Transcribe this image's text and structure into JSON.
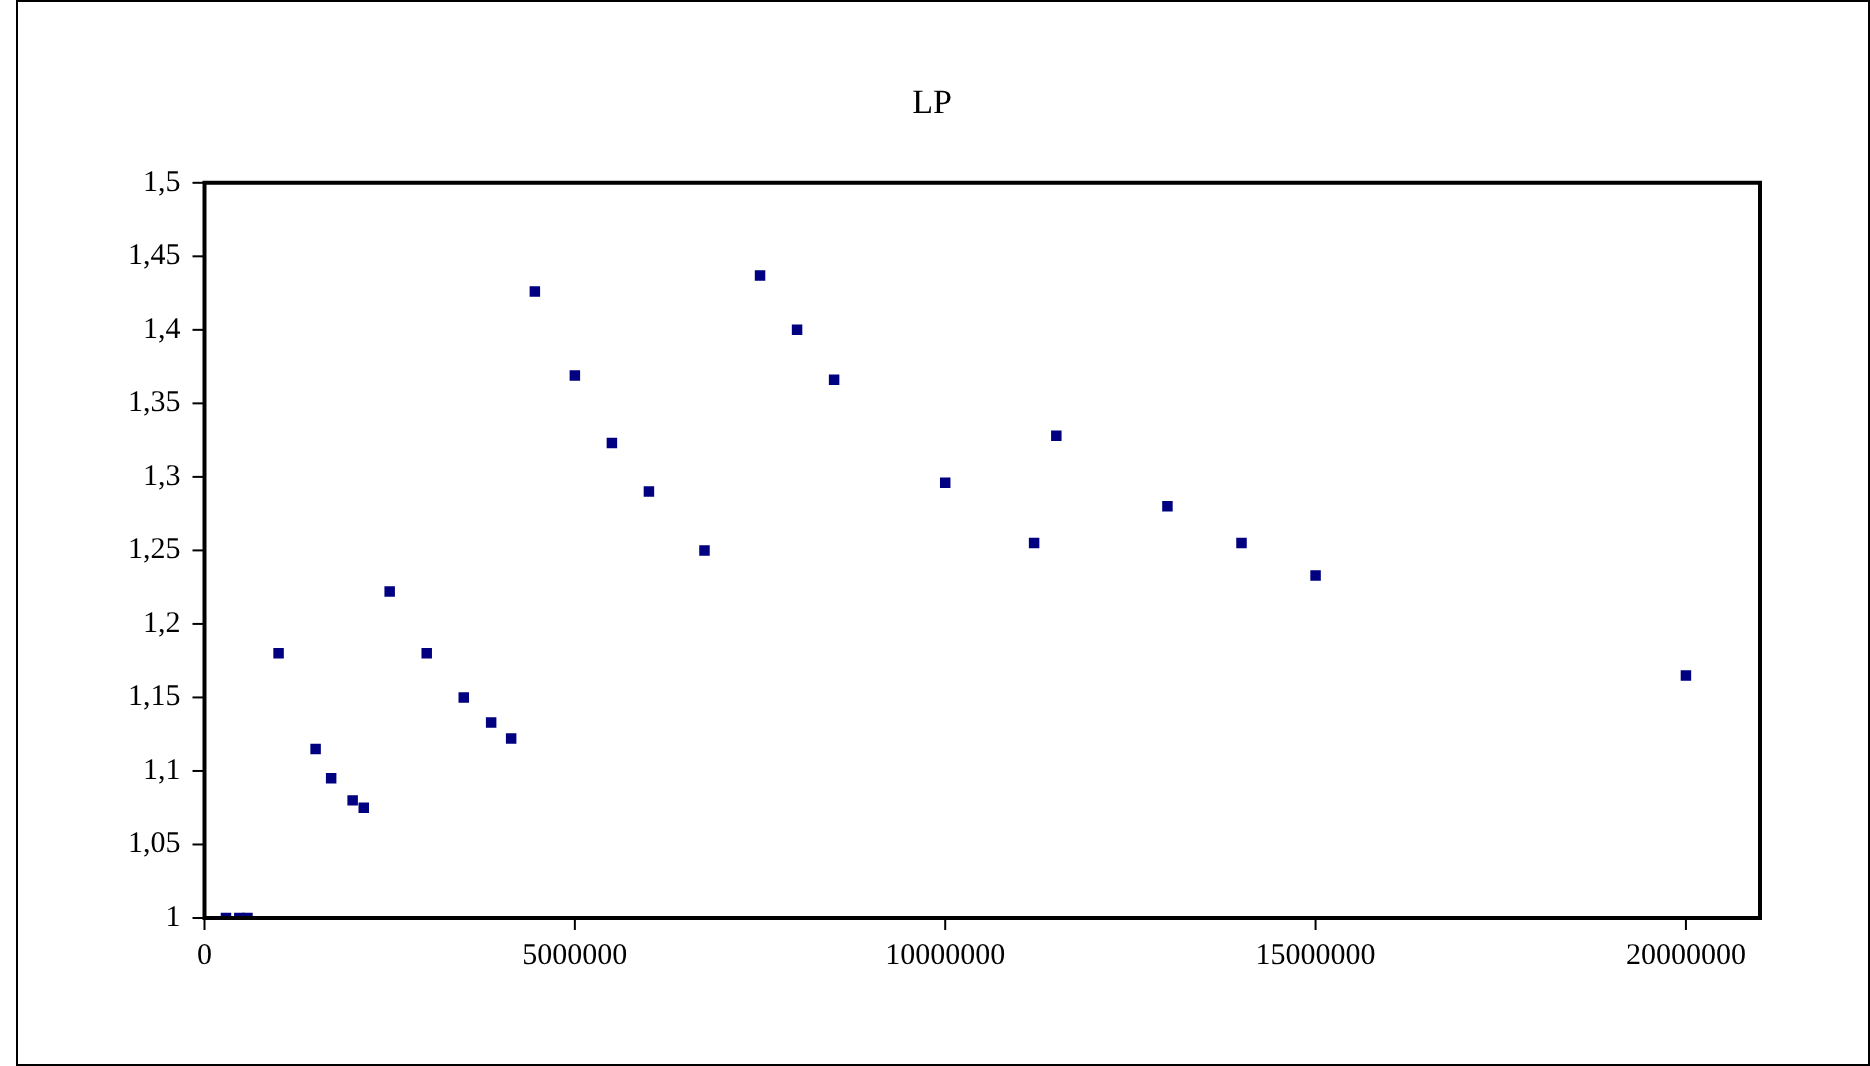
{
  "chart_data": {
    "type": "scatter",
    "title": "LP",
    "x": [
      290000,
      470000,
      580000,
      1000000,
      1500000,
      1710000,
      2000000,
      2150000,
      2500000,
      3000000,
      3500000,
      3870000,
      4140000,
      4460000,
      5000000,
      5500000,
      6000000,
      6750000,
      7500000,
      8000000,
      8500000,
      10000000,
      11200000,
      11500000,
      13000000,
      14000000,
      15000000,
      20000000
    ],
    "series": [
      {
        "color": "#000080",
        "values": [
          1,
          1,
          1,
          1.18,
          1.115,
          1.095,
          1.08,
          1.075,
          1.222,
          1.18,
          1.15,
          1.133,
          1.122,
          1.426,
          1.369,
          1.323,
          1.29,
          1.25,
          1.437,
          1.4,
          1.366,
          1.296,
          1.255,
          1.328,
          1.28,
          1.255,
          1.233,
          1.165
        ]
      }
    ],
    "xlim": [
      0,
      21000000
    ],
    "xticks": [
      0,
      5000000,
      10000000,
      15000000,
      20000000
    ],
    "ylim": [
      1,
      1.5
    ],
    "yticks": [
      1,
      {
        "value": 1.05,
        "label": "1,05"
      },
      {
        "value": 1.1,
        "label": "1,1"
      },
      {
        "value": 1.15,
        "label": "1,15"
      },
      {
        "value": 1.2,
        "label": "1,2"
      },
      {
        "value": 1.25,
        "label": "1,25"
      },
      {
        "value": 1.3,
        "label": "1,3"
      },
      {
        "value": 1.35,
        "label": "1,35"
      },
      {
        "value": 1.4,
        "label": "1,4"
      },
      {
        "value": 1.45,
        "label": "1,45"
      },
      {
        "value": 1.5,
        "label": "1,5"
      }
    ],
    "grid": false,
    "legend": false,
    "marker": "square"
  }
}
